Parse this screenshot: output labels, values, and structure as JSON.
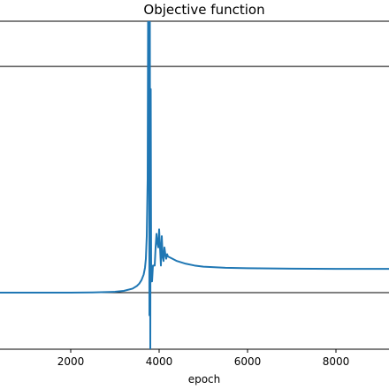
{
  "chart_data": {
    "type": "line",
    "title": "Objective function",
    "xlabel": "epoch",
    "ylabel": "",
    "xlim": [
      400,
      9200
    ],
    "ylim": [
      -0.25,
      1.2
    ],
    "xticks": [
      2000,
      4000,
      6000,
      8000
    ],
    "xtick_labels": [
      "2000",
      "4000",
      "6000",
      "8000"
    ],
    "grid": false,
    "colors": {
      "series": "#1f77b4",
      "hline": "#000000",
      "frame": "#000000"
    },
    "hlines": [
      0.0,
      1.0
    ],
    "series": [
      {
        "x": [
          400,
          1000,
          2000,
          2500,
          3000,
          3200,
          3400,
          3500,
          3550,
          3600,
          3650,
          3680,
          3700,
          3720,
          3740,
          3750,
          3760,
          3770,
          3780,
          3790,
          3800,
          3810,
          3820,
          3840,
          3860,
          3880,
          3900,
          3920,
          3940,
          3960,
          3980,
          4000,
          4020,
          4040,
          4060,
          4080,
          4100,
          4120,
          4140,
          4160,
          4180,
          4200,
          4300,
          4400,
          4600,
          4800,
          5000,
          5500,
          6000,
          7000,
          8000,
          9200
        ],
        "y": [
          0.0,
          0.0,
          0.0,
          0.001,
          0.004,
          0.008,
          0.018,
          0.03,
          0.04,
          0.055,
          0.08,
          0.11,
          0.15,
          0.25,
          0.5,
          1.2,
          1.3,
          1.3,
          -0.1,
          1.2,
          -0.25,
          0.9,
          0.05,
          0.05,
          0.12,
          0.12,
          0.12,
          0.2,
          0.26,
          0.22,
          0.2,
          0.28,
          0.2,
          0.12,
          0.25,
          0.16,
          0.14,
          0.2,
          0.17,
          0.15,
          0.17,
          0.16,
          0.15,
          0.14,
          0.128,
          0.12,
          0.115,
          0.11,
          0.108,
          0.106,
          0.105,
          0.105
        ]
      }
    ]
  }
}
